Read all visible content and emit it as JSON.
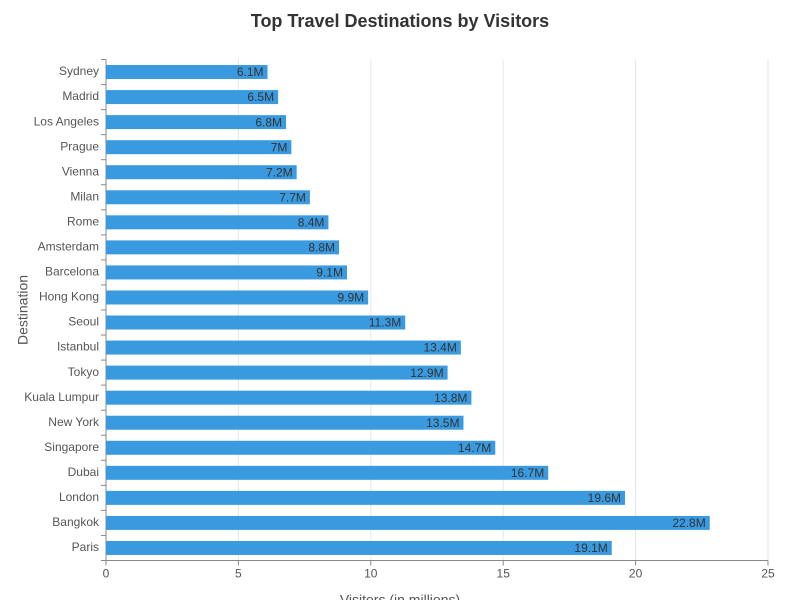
{
  "chart_data": {
    "type": "bar",
    "orientation": "horizontal",
    "title": "Top Travel Destinations by Visitors",
    "x_label": "Visitors (in millions)",
    "y_label": "Destination",
    "categories": [
      "Sydney",
      "Madrid",
      "Los Angeles",
      "Prague",
      "Vienna",
      "Milan",
      "Rome",
      "Amsterdam",
      "Barcelona",
      "Hong Kong",
      "Seoul",
      "Istanbul",
      "Tokyo",
      "Kuala Lumpur",
      "New York",
      "Singapore",
      "Dubai",
      "London",
      "Bangkok",
      "Paris"
    ],
    "values": [
      6.1,
      6.5,
      6.8,
      7,
      7.2,
      7.7,
      8.4,
      8.8,
      9.1,
      9.9,
      11.3,
      13.4,
      12.9,
      13.8,
      13.5,
      14.7,
      16.7,
      19.6,
      22.8,
      19.1
    ],
    "value_labels": [
      "6.1M",
      "6.5M",
      "6.8M",
      "7M",
      "7.2M",
      "7.7M",
      "8.4M",
      "8.8M",
      "9.1M",
      "9.9M",
      "11.3M",
      "13.4M",
      "12.9M",
      "13.8M",
      "13.5M",
      "14.7M",
      "16.7M",
      "19.6M",
      "22.8M",
      "19.1M"
    ],
    "color": "#3a9ae0",
    "xlim": [
      0,
      25
    ],
    "xticks": [
      0,
      5,
      10,
      15,
      20,
      25
    ],
    "grid": true
  }
}
